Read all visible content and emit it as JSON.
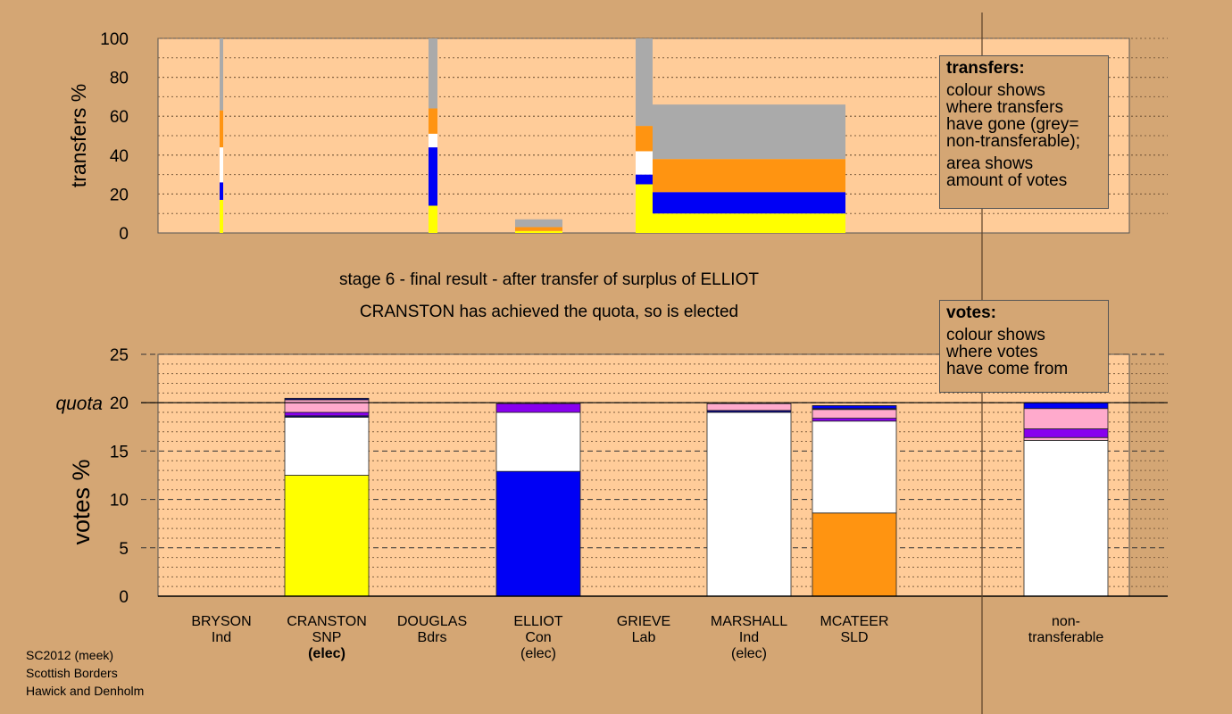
{
  "colors": {
    "background": "#d4a674",
    "plot_fill": "#ffcc99",
    "grey": "#aaaaaa",
    "orange": "#ff9411",
    "white": "#ffffff",
    "blue": "#0000f5",
    "yellow": "#ffff00",
    "pink": "#ffaacc",
    "purple": "#8800ee",
    "navy": "#000088"
  },
  "subtitle": {
    "line1": "stage 6 - final result - after transfer of surplus of ELLIOT",
    "line2": "CRANSTON has achieved the quota, so is elected"
  },
  "legend_transfers": {
    "title": "transfers:",
    "lines": [
      "colour shows",
      "where transfers",
      "have gone (grey=",
      "non-transferable);",
      "area shows",
      "amount of votes"
    ]
  },
  "legend_votes": {
    "title": "votes:",
    "lines": [
      "colour shows",
      "where votes",
      "have come from"
    ]
  },
  "candidates": [
    {
      "name": "BRYSON",
      "party": "Ind",
      "status": ""
    },
    {
      "name": "CRANSTON",
      "party": "SNP",
      "status": "(elec)"
    },
    {
      "name": "DOUGLAS",
      "party": "Bdrs",
      "status": ""
    },
    {
      "name": "ELLIOT",
      "party": "Con",
      "status": "(elec)"
    },
    {
      "name": "GRIEVE",
      "party": "Lab",
      "status": ""
    },
    {
      "name": "MARSHALL",
      "party": "Ind",
      "status": "(elec)"
    },
    {
      "name": "MCATEER",
      "party": "SLD",
      "status": ""
    }
  ],
  "nontransferable_label": {
    "line1": "non-",
    "line2": "transferable"
  },
  "footer": [
    "SC2012 (meek)",
    "Scottish Borders",
    "Hawick and Denholm"
  ],
  "chart_data": [
    {
      "type": "bar",
      "title": "",
      "ylabel": "transfers %",
      "ylim": [
        0,
        100
      ],
      "yticks": [
        0,
        20,
        40,
        60,
        80,
        100
      ],
      "grid": true,
      "legend": "right",
      "bars": [
        {
          "transfer": "BRYSON",
          "width_pct": 1,
          "segments": [
            {
              "color": "yellow",
              "value": 17
            },
            {
              "color": "blue",
              "value": 9
            },
            {
              "color": "white",
              "value": 18
            },
            {
              "color": "orange",
              "value": 19
            },
            {
              "color": "grey",
              "value": 37
            }
          ]
        },
        {
          "transfer": "DOUGLAS",
          "width_pct": 4,
          "segments": [
            {
              "color": "yellow",
              "value": 14
            },
            {
              "color": "blue",
              "value": 30
            },
            {
              "color": "white",
              "value": 7
            },
            {
              "color": "orange",
              "value": 13
            },
            {
              "color": "grey",
              "value": 36
            }
          ]
        },
        {
          "transfer": "ELLIOT",
          "width_pct": 25,
          "segments": [
            {
              "color": "yellow",
              "value": 1
            },
            {
              "color": "orange",
              "value": 2
            },
            {
              "color": "grey",
              "value": 4
            }
          ]
        },
        {
          "transfer": "GRIEVE",
          "width_pct": 9,
          "segments": [
            {
              "color": "yellow",
              "value": 25
            },
            {
              "color": "blue",
              "value": 5
            },
            {
              "color": "white",
              "value": 12
            },
            {
              "color": "orange",
              "value": 13
            },
            {
              "color": "grey",
              "value": 45
            }
          ]
        },
        {
          "transfer": "MARSHALL",
          "width_pct": 100,
          "segments": [
            {
              "color": "yellow",
              "value": 10
            },
            {
              "color": "blue",
              "value": 11
            },
            {
              "color": "orange",
              "value": 17
            },
            {
              "color": "grey",
              "value": 28
            }
          ]
        }
      ]
    },
    {
      "type": "bar",
      "title": "",
      "ylabel": "votes %",
      "ylim": [
        0,
        25
      ],
      "yticks": [
        0,
        5,
        10,
        15,
        20,
        25
      ],
      "quota": 20,
      "quota_label": "quota",
      "grid": true,
      "categories": [
        "BRYSON",
        "CRANSTON",
        "DOUGLAS",
        "ELLIOT",
        "GRIEVE",
        "MARSHALL",
        "MCATEER",
        "non-transferable"
      ],
      "bars": [
        {
          "category": "BRYSON",
          "segments": []
        },
        {
          "category": "CRANSTON",
          "segments": [
            {
              "color": "yellow",
              "value": 12.5
            },
            {
              "color": "white",
              "value": 6
            },
            {
              "color": "navy",
              "value": 0.15
            },
            {
              "color": "purple",
              "value": 0.35
            },
            {
              "color": "pink",
              "value": 1.3
            },
            {
              "color": "navy",
              "value": 0.15
            }
          ]
        },
        {
          "category": "DOUGLAS",
          "segments": []
        },
        {
          "category": "ELLIOT",
          "segments": [
            {
              "color": "blue",
              "value": 12.9
            },
            {
              "color": "white",
              "value": 6.1
            },
            {
              "color": "purple",
              "value": 0.9
            }
          ]
        },
        {
          "category": "GRIEVE",
          "segments": []
        },
        {
          "category": "MARSHALL",
          "segments": [
            {
              "color": "white",
              "value": 19
            },
            {
              "color": "navy",
              "value": 0.2
            },
            {
              "color": "pink",
              "value": 0.7
            }
          ]
        },
        {
          "category": "MCATEER",
          "segments": [
            {
              "color": "orange",
              "value": 8.6
            },
            {
              "color": "white",
              "value": 9.5
            },
            {
              "color": "purple",
              "value": 0.3
            },
            {
              "color": "pink",
              "value": 0.9
            },
            {
              "color": "navy",
              "value": 0.1
            },
            {
              "color": "blue",
              "value": 0.3
            }
          ]
        },
        {
          "category": "non-transferable",
          "segments": [
            {
              "color": "white",
              "value": 16.1
            },
            {
              "color": "pink",
              "value": 0.3
            },
            {
              "color": "purple",
              "value": 0.9
            },
            {
              "color": "pink",
              "value": 2.1
            },
            {
              "color": "blue",
              "value": 0.6
            }
          ]
        }
      ]
    }
  ]
}
